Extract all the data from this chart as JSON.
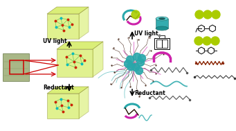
{
  "background_color": "#ffffff",
  "fig_width": 3.41,
  "fig_height": 1.89,
  "dpi": 100,
  "cube_color": "#cce844",
  "cube_alpha": 0.6,
  "labels": {
    "uv_light_left": "UV light",
    "uv_light_center": "UV light",
    "reductant_left": "Reductant",
    "reductant_center": "Reductant"
  },
  "node_color_red": "#cc2200",
  "node_color_teal": "#00bbbb",
  "node_color_green": "#99cc00",
  "chem_teal": "#29a8ab",
  "chem_magenta": "#cc22aa",
  "chem_green": "#aacc00",
  "chem_dark": "#221100",
  "chem_brown": "#882200",
  "line_green": "#44bb44"
}
